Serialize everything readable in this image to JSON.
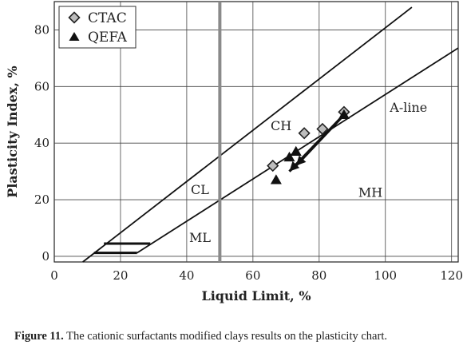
{
  "figure": {
    "caption_label": "Figure 11.",
    "caption_text": " The cationic surfactants modified clays results on the plasticity chart."
  },
  "chart_data": {
    "type": "scatter",
    "title": "",
    "xlabel": "Liquid Limit, %",
    "ylabel": "Plasticity Index, %",
    "xlim": [
      0,
      122
    ],
    "ylim": [
      -2,
      90
    ],
    "xticks": [
      0,
      20,
      40,
      60,
      80,
      100,
      120
    ],
    "yticks": [
      0,
      20,
      40,
      60,
      80
    ],
    "grid": true,
    "legend_position": "top-left",
    "series": [
      {
        "name": "CTAC",
        "marker": "diamond",
        "color": "#bdbdbd",
        "points": [
          [
            66,
            32
          ],
          [
            75.5,
            43.5
          ],
          [
            81,
            45
          ],
          [
            87.5,
            51
          ]
        ]
      },
      {
        "name": "QEFA",
        "marker": "triangle",
        "color": "#111111",
        "points": [
          [
            67,
            27
          ],
          [
            71,
            35
          ],
          [
            73,
            37
          ],
          [
            87.5,
            50
          ]
        ]
      }
    ],
    "reference_lines": [
      {
        "name": "U-line",
        "label": "",
        "points": [
          [
            7.5,
            -3
          ],
          [
            108,
            88
          ]
        ]
      },
      {
        "name": "A-line",
        "label": "A-line",
        "points": [
          [
            25,
            1.2
          ],
          [
            122,
            73.6
          ]
        ]
      },
      {
        "name": "LL50",
        "label": "",
        "points": [
          [
            50,
            -3
          ],
          [
            50,
            90
          ]
        ]
      }
    ],
    "hatch_bars": [
      {
        "x": [
          12,
          25
        ],
        "y": 1.2
      },
      {
        "x": [
          15,
          29
        ],
        "y": 4.5
      }
    ],
    "arrows": [
      {
        "from": [
          87.5,
          50
        ],
        "to": [
          71,
          30
        ]
      },
      {
        "from": [
          87.5,
          50
        ],
        "to": [
          73,
          32
        ]
      }
    ],
    "zone_labels": [
      {
        "text": "CL",
        "x": 44,
        "y": 22
      },
      {
        "text": "ML",
        "x": 44,
        "y": 5
      },
      {
        "text": "CH",
        "x": 68.5,
        "y": 44.5
      },
      {
        "text": "MH",
        "x": 95.5,
        "y": 21
      },
      {
        "text": "A-line",
        "x": 107,
        "y": 51
      }
    ]
  }
}
